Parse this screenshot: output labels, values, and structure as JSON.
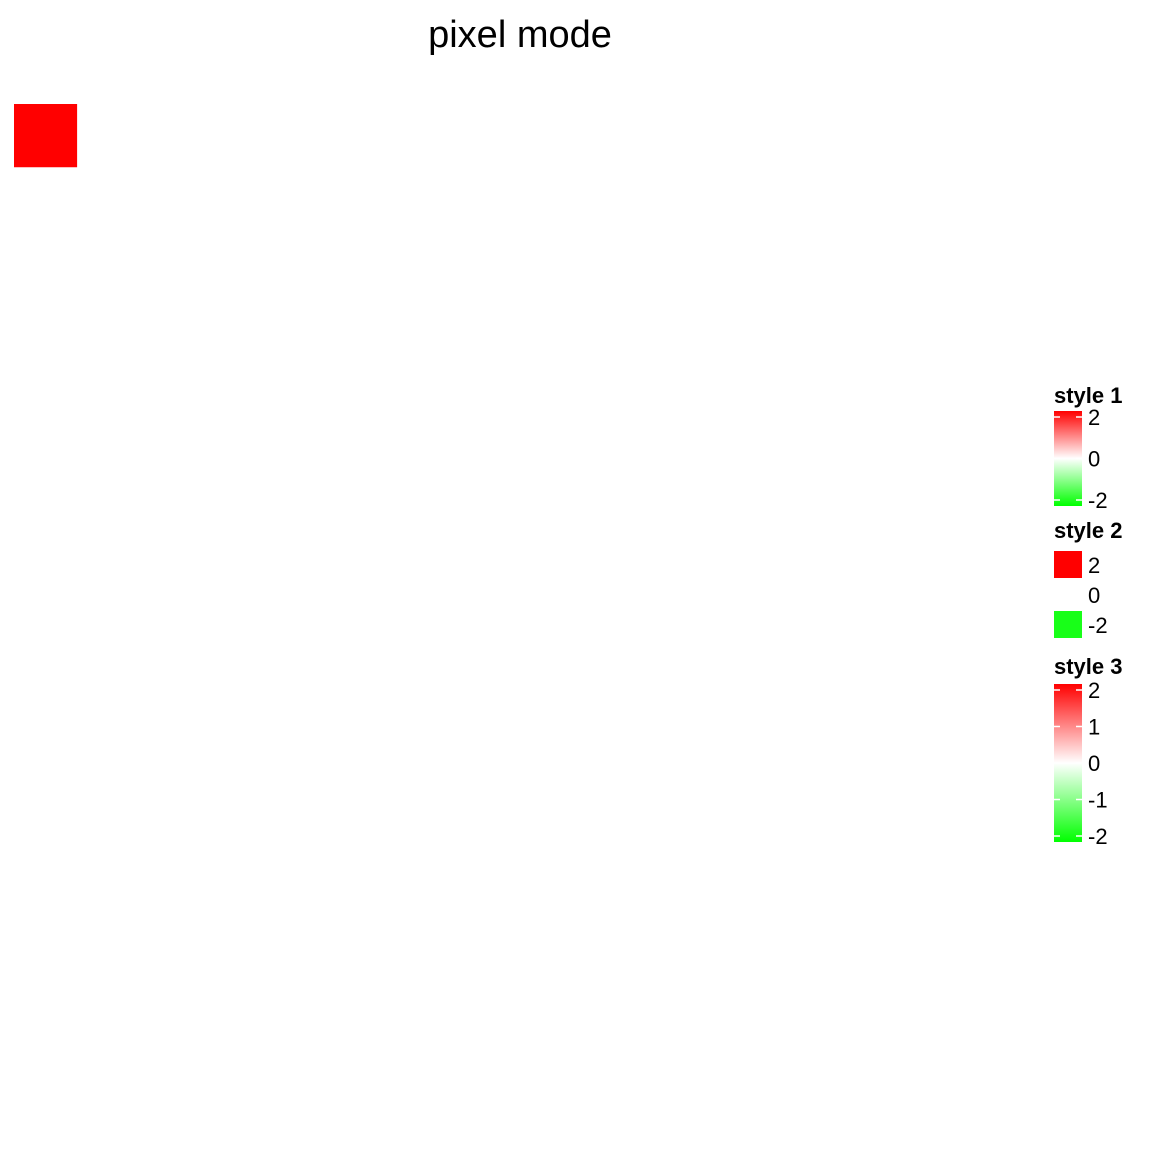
{
  "chart_data": {
    "type": "heatmap",
    "title": "pixel mode",
    "xlabel": "",
    "ylabel": "",
    "grid": false,
    "legend_position": "right",
    "color_scale": {
      "low": "#00ff00",
      "mid": "#ffffff",
      "high": "#ff0000",
      "limits": [
        -2,
        2
      ]
    },
    "legends": [
      {
        "name": "style 1",
        "kind": "colorbar",
        "ticks": [
          "2",
          "0",
          "-2"
        ],
        "tick_values": [
          2,
          0,
          -2
        ]
      },
      {
        "name": "style 2",
        "kind": "discrete",
        "keys": [
          {
            "label": "2",
            "value": 2,
            "color": "#ff0000"
          },
          {
            "label": "0",
            "value": 0,
            "color": "#ffffff"
          },
          {
            "label": "-2",
            "value": -2,
            "color": "#18ff18"
          }
        ]
      },
      {
        "name": "style 3",
        "kind": "colorbar",
        "ticks": [
          "2",
          "1",
          "0",
          "-1",
          "-2"
        ],
        "tick_values": [
          2,
          1,
          0,
          -1,
          -2
        ]
      }
    ],
    "grid_cols": 16,
    "grid_rows": 16,
    "cells": [
      [
        2,
        0,
        0,
        0,
        0,
        0,
        0,
        0,
        0,
        0,
        0,
        0,
        0,
        0,
        0,
        0
      ],
      [
        0,
        0,
        0,
        0,
        0,
        0,
        0,
        0,
        0,
        0,
        0,
        0,
        0,
        0,
        0,
        0
      ],
      [
        0,
        0,
        0,
        0,
        0,
        0,
        0,
        0,
        0,
        0,
        0,
        0,
        0,
        0,
        0,
        0
      ],
      [
        0,
        0,
        0,
        0,
        0,
        0,
        0,
        0,
        0,
        0,
        0,
        0,
        0,
        0,
        0,
        0
      ],
      [
        0,
        0,
        0,
        0,
        0,
        0,
        0,
        0,
        0,
        0,
        0,
        0,
        0,
        0,
        0,
        0
      ],
      [
        0,
        0,
        0,
        0,
        0,
        0,
        0,
        0,
        0,
        0,
        0,
        0,
        0,
        0,
        0,
        0
      ],
      [
        0,
        0,
        0,
        0,
        0,
        0,
        0,
        0,
        0,
        0,
        0,
        0,
        0,
        0,
        0,
        0
      ],
      [
        0,
        0,
        0,
        0,
        0,
        0,
        0,
        0,
        0,
        0,
        0,
        0,
        0,
        0,
        0,
        0
      ],
      [
        0,
        0,
        0,
        0,
        0,
        0,
        0,
        0,
        0,
        0,
        0,
        0,
        0,
        0,
        0,
        0
      ],
      [
        0,
        0,
        0,
        0,
        0,
        0,
        0,
        0,
        0,
        0,
        0,
        0,
        0,
        0,
        0,
        0
      ],
      [
        0,
        0,
        0,
        0,
        0,
        0,
        0,
        0,
        0,
        0,
        0,
        0,
        0,
        0,
        0,
        0
      ],
      [
        0,
        0,
        0,
        0,
        0,
        0,
        0,
        0,
        0,
        0,
        0,
        0,
        0,
        0,
        0,
        0
      ],
      [
        0,
        0,
        0,
        0,
        0,
        0,
        0,
        0,
        0,
        0,
        0,
        0,
        0,
        0,
        0,
        0
      ],
      [
        0,
        0,
        0,
        0,
        0,
        0,
        0,
        0,
        0,
        0,
        0,
        0,
        0,
        0,
        0,
        0
      ],
      [
        0,
        0,
        0,
        0,
        0,
        0,
        0,
        0,
        0,
        0,
        0,
        0,
        0,
        0,
        0,
        0
      ],
      [
        0,
        0,
        0,
        0,
        0,
        0,
        0,
        0,
        0,
        0,
        0,
        0,
        0,
        0,
        0,
        0
      ]
    ]
  }
}
